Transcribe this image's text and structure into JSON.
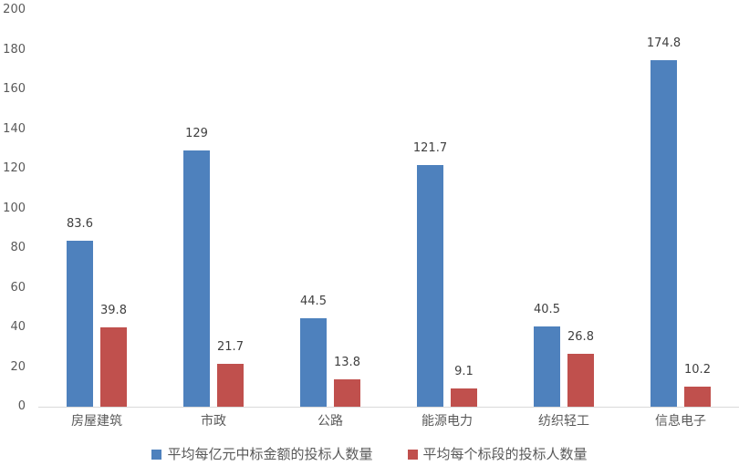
{
  "chart_data": {
    "type": "bar",
    "title": "",
    "xlabel": "",
    "ylabel": "",
    "categories": [
      "房屋建筑",
      "市政",
      "公路",
      "能源电力",
      "纺织轻工",
      "信息电子"
    ],
    "series": [
      {
        "name": "平均每亿元中标金额的投标人数量",
        "color": "#4E81BD",
        "values": [
          83.6,
          129,
          44.5,
          121.7,
          40.5,
          174.8
        ],
        "labels": [
          "83.6",
          "129",
          "44.5",
          "121.7",
          "40.5",
          "174.8"
        ]
      },
      {
        "name": "平均每个标段的投标人数量",
        "color": "#C0504D",
        "values": [
          39.8,
          21.7,
          13.8,
          9.1,
          26.8,
          10.2
        ],
        "labels": [
          "39.8",
          "21.7",
          "13.8",
          "9.1",
          "26.8",
          "10.2"
        ]
      }
    ],
    "ylim": [
      0,
      200
    ],
    "yticks": [
      0,
      20,
      40,
      60,
      80,
      100,
      120,
      140,
      160,
      180,
      200
    ],
    "grid": false,
    "legend_position": "bottom"
  },
  "colors": {
    "axis_text": "#595959",
    "data_label": "#404040",
    "axis_line": "#D9D9D9",
    "background": "#FFFFFF"
  }
}
